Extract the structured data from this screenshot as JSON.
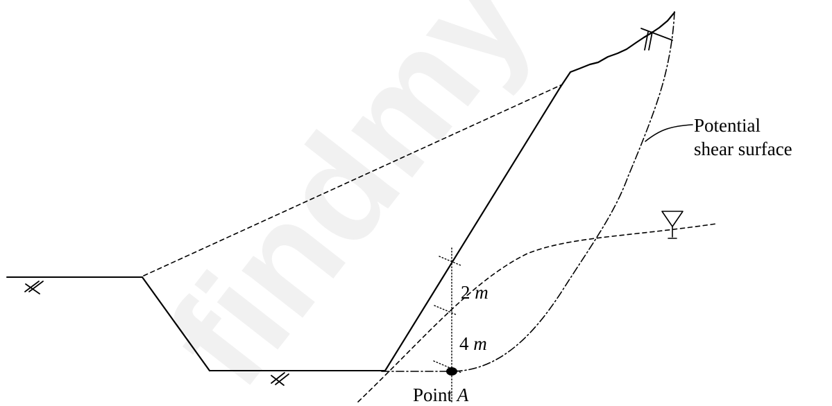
{
  "labels": {
    "potential_line1": "Potential",
    "potential_line2": "shear surface",
    "dim_upper": "2",
    "dim_lower": "4",
    "unit": "m",
    "point_prefix": "Point ",
    "point_name": "A"
  },
  "watermark": "findmy",
  "colors": {
    "line": "#000000"
  }
}
